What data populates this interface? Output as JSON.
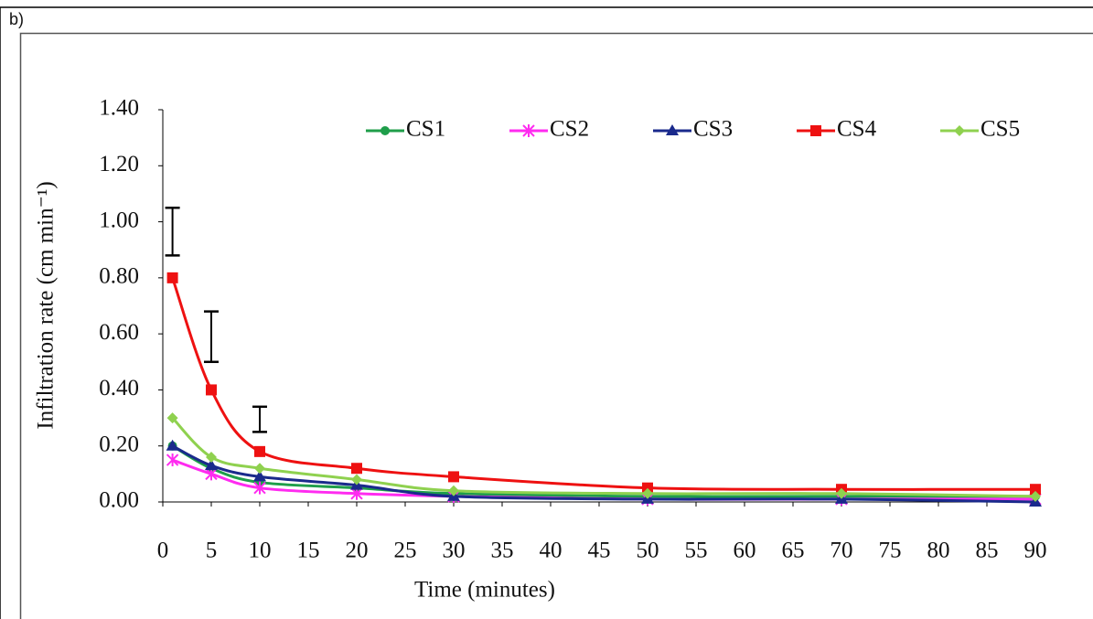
{
  "panel_label": "b)",
  "chart_data": {
    "type": "line",
    "x_label": "Time (minutes)",
    "y_label": "Infiltration rate (cm min⁻¹)",
    "xlim": [
      0,
      90
    ],
    "ylim": [
      0,
      1.4
    ],
    "xticks": [
      0,
      5,
      10,
      15,
      20,
      25,
      30,
      35,
      40,
      45,
      50,
      55,
      60,
      65,
      70,
      75,
      80,
      85,
      90
    ],
    "yticks": [
      {
        "value": 0,
        "label": "0.00"
      },
      {
        "value": 0.2,
        "label": "0.20"
      },
      {
        "value": 0.4,
        "label": "0.40"
      },
      {
        "value": 0.6,
        "label": "0.60"
      },
      {
        "value": 0.8,
        "label": "0.80"
      },
      {
        "value": 1.0,
        "label": "1.00"
      },
      {
        "value": 1.2,
        "label": "1.20"
      },
      {
        "value": 1.4,
        "label": "1.40"
      }
    ],
    "grid": false,
    "legend": "top",
    "x": [
      1,
      5,
      10,
      20,
      30,
      50,
      70,
      90
    ],
    "series": [
      {
        "name": "CS1",
        "color": "#1f9e4a",
        "marker": "circle",
        "values": [
          0.2,
          0.12,
          0.07,
          0.05,
          0.03,
          0.02,
          0.02,
          0.02
        ]
      },
      {
        "name": "CS2",
        "color": "#ff2bf0",
        "marker": "star",
        "values": [
          0.15,
          0.1,
          0.05,
          0.03,
          0.02,
          0.01,
          0.01,
          0.01
        ]
      },
      {
        "name": "CS3",
        "color": "#1a2a8c",
        "marker": "triangle",
        "values": [
          0.2,
          0.13,
          0.09,
          0.06,
          0.02,
          0.01,
          0.01,
          0.0
        ]
      },
      {
        "name": "CS4",
        "color": "#ee1111",
        "marker": "square",
        "values": [
          0.8,
          0.4,
          0.18,
          0.12,
          0.09,
          0.05,
          0.045,
          0.045
        ]
      },
      {
        "name": "CS5",
        "color": "#8fd14f",
        "marker": "diamond",
        "values": [
          0.3,
          0.16,
          0.12,
          0.08,
          0.04,
          0.03,
          0.03,
          0.02
        ]
      }
    ],
    "error_bars": [
      {
        "x": 1,
        "low": 0.88,
        "high": 1.05
      },
      {
        "x": 5,
        "low": 0.5,
        "high": 0.68
      },
      {
        "x": 10,
        "low": 0.25,
        "high": 0.34
      }
    ]
  }
}
